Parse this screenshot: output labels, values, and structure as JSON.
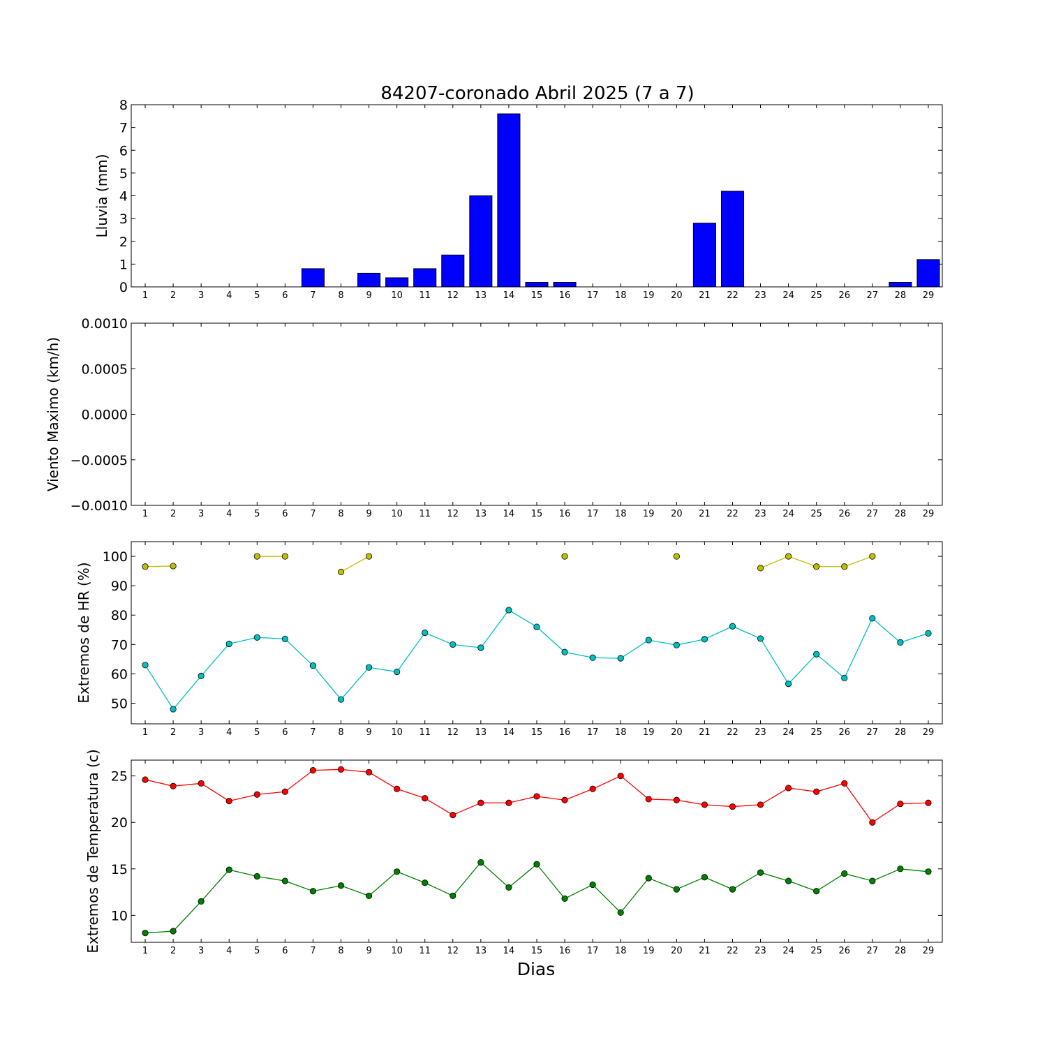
{
  "figure": {
    "title": "84207-coronado Abril 2025  (7 a 7)",
    "xlabel": "Dias"
  },
  "chart_data": [
    {
      "type": "bar",
      "ylabel": "Lluvia (mm)",
      "ylim": [
        0,
        8
      ],
      "yticks": [
        "0",
        "1",
        "2",
        "3",
        "4",
        "5",
        "6",
        "7",
        "8"
      ],
      "categories": [
        "1",
        "2",
        "3",
        "4",
        "5",
        "6",
        "7",
        "8",
        "9",
        "10",
        "11",
        "12",
        "13",
        "14",
        "15",
        "16",
        "17",
        "18",
        "19",
        "20",
        "21",
        "22",
        "23",
        "24",
        "25",
        "26",
        "27",
        "28",
        "29"
      ],
      "series": [
        {
          "color": "#0000ff",
          "values": [
            0,
            0,
            0,
            0,
            0,
            0,
            0.8,
            0,
            0.6,
            0.4,
            0.8,
            1.4,
            4.0,
            7.6,
            0.2,
            0.2,
            0,
            0,
            0,
            0,
            2.8,
            4.2,
            0,
            0,
            0,
            0,
            0,
            0.2,
            1.2
          ]
        }
      ]
    },
    {
      "type": "line",
      "ylabel": "Viento Maximo (km/h)",
      "ylim": [
        -0.001,
        0.001
      ],
      "yticks": [
        "0.0010",
        "0.0005",
        "0.0000",
        "−0.0005",
        "−0.0010"
      ],
      "categories": [
        "1",
        "2",
        "3",
        "4",
        "5",
        "6",
        "7",
        "8",
        "9",
        "10",
        "11",
        "12",
        "13",
        "14",
        "15",
        "16",
        "17",
        "18",
        "19",
        "20",
        "21",
        "22",
        "23",
        "24",
        "25",
        "26",
        "27",
        "28",
        "29"
      ],
      "series": []
    },
    {
      "type": "line",
      "ylabel": "Extremos de HR (%)",
      "ylim": [
        43,
        105
      ],
      "yticks": [
        "50",
        "60",
        "70",
        "80",
        "90",
        "100"
      ],
      "categories": [
        "1",
        "2",
        "3",
        "4",
        "5",
        "6",
        "7",
        "8",
        "9",
        "10",
        "11",
        "12",
        "13",
        "14",
        "15",
        "16",
        "17",
        "18",
        "19",
        "20",
        "21",
        "22",
        "23",
        "24",
        "25",
        "26",
        "27",
        "28",
        "29"
      ],
      "series": [
        {
          "color": "#bfbf00",
          "values": [
            96.5,
            96.7,
            null,
            null,
            100,
            100,
            null,
            94.7,
            100,
            null,
            null,
            null,
            null,
            null,
            null,
            100,
            null,
            null,
            null,
            100,
            null,
            null,
            96,
            100,
            96.5,
            96.5,
            100,
            null,
            null
          ]
        },
        {
          "color": "#00bfbf",
          "values": [
            63,
            48,
            59.3,
            70.2,
            72.4,
            71.9,
            62.8,
            51.3,
            62.2,
            60.7,
            74,
            70,
            68.9,
            81.7,
            76,
            67.4,
            65.5,
            65.3,
            71.5,
            69.8,
            71.8,
            76.2,
            72,
            56.6,
            66.7,
            58.6,
            78.9,
            70.7,
            73.8
          ]
        }
      ]
    },
    {
      "type": "line",
      "ylabel": "Extremos de Temperatura (c)",
      "ylim": [
        7.1,
        26.7
      ],
      "yticks": [
        "10",
        "15",
        "20",
        "25"
      ],
      "categories": [
        "1",
        "2",
        "3",
        "4",
        "5",
        "6",
        "7",
        "8",
        "9",
        "10",
        "11",
        "12",
        "13",
        "14",
        "15",
        "16",
        "17",
        "18",
        "19",
        "20",
        "21",
        "22",
        "23",
        "24",
        "25",
        "26",
        "27",
        "28",
        "29"
      ],
      "series": [
        {
          "color": "#ff0000",
          "values": [
            24.6,
            23.9,
            24.2,
            22.3,
            23.0,
            23.3,
            25.6,
            25.7,
            25.4,
            23.6,
            22.6,
            20.8,
            22.1,
            22.1,
            22.8,
            22.4,
            23.6,
            25.0,
            22.5,
            22.4,
            21.9,
            21.7,
            21.9,
            23.7,
            23.3,
            24.2,
            20.0,
            22.0,
            22.1
          ]
        },
        {
          "color": "#008000",
          "values": [
            8.1,
            8.3,
            11.5,
            14.9,
            14.2,
            13.7,
            12.6,
            13.2,
            12.1,
            14.7,
            13.5,
            12.1,
            15.7,
            13.0,
            15.5,
            11.8,
            13.3,
            10.3,
            14.0,
            12.8,
            14.1,
            12.8,
            14.6,
            13.7,
            12.6,
            14.5,
            13.7,
            15.0,
            14.7
          ]
        }
      ]
    }
  ]
}
